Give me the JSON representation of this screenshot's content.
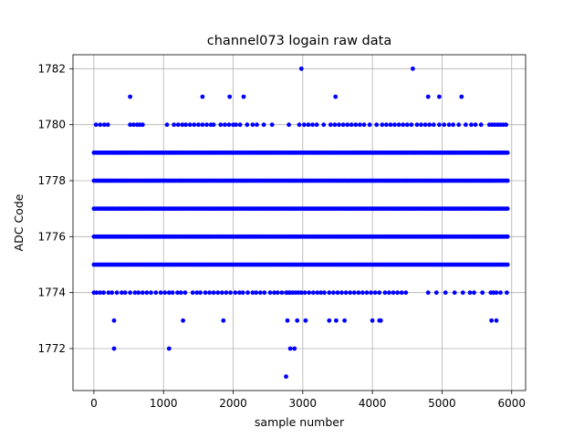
{
  "chart_data": {
    "type": "scatter",
    "title": "channel073 logain raw data",
    "xlabel": "sample number",
    "ylabel": "ADC Code",
    "xlim": [
      -300,
      6200
    ],
    "ylim": [
      1770.5,
      1782.5
    ],
    "xticks": [
      0,
      1000,
      2000,
      3000,
      4000,
      5000,
      6000
    ],
    "yticks": [
      1772,
      1774,
      1776,
      1778,
      1780,
      1782
    ],
    "grid": true,
    "marker_color": "#0000ff",
    "series": [
      {
        "dense_levels": [
          1775,
          1776,
          1777,
          1778,
          1779
        ],
        "sparse_levels": [
          {
            "y": 1774,
            "x": [
              0,
              40,
              90,
              140,
              210,
              260,
              330,
              400,
              450,
              520,
              590,
              640,
              700,
              760,
              820,
              890,
              960,
              1020,
              1080,
              1130,
              1200,
              1250,
              1310,
              1420,
              1480,
              1530,
              1600,
              1660,
              1720,
              1780,
              1840,
              1900,
              1960,
              2030,
              2090,
              2140,
              2210,
              2280,
              2330,
              2390,
              2450,
              2530,
              2590,
              2640,
              2700,
              2760,
              2790,
              2820,
              2860,
              2900,
              2940,
              2980,
              3030,
              3090,
              3150,
              3210,
              3260,
              3310,
              3380,
              3440,
              3500,
              3560,
              3620,
              3680,
              3740,
              3800,
              3860,
              3920,
              3980,
              4040,
              4100,
              4180,
              4240,
              4300,
              4360,
              4420,
              4480,
              4800,
              4920,
              5050,
              5180,
              5300,
              5400,
              5460,
              5580,
              5700,
              5740,
              5780,
              5840,
              5930
            ]
          },
          {
            "y": 1780,
            "x": [
              30,
              90,
              150,
              200,
              520,
              570,
              620,
              660,
              700,
              1050,
              1150,
              1210,
              1270,
              1320,
              1380,
              1440,
              1500,
              1560,
              1620,
              1680,
              1720,
              1820,
              1880,
              1940,
              2000,
              2040,
              2100,
              2200,
              2280,
              2340,
              2440,
              2560,
              2800,
              2950,
              3020,
              3080,
              3140,
              3200,
              3300,
              3400,
              3460,
              3520,
              3580,
              3640,
              3700,
              3760,
              3820,
              3880,
              3960,
              4060,
              4140,
              4200,
              4260,
              4320,
              4380,
              4440,
              4500,
              4560,
              4640,
              4700,
              4760,
              4820,
              4880,
              4960,
              5030,
              5100,
              5160,
              5240,
              5340,
              5420,
              5480,
              5560,
              5680,
              5720,
              5760,
              5800,
              5840,
              5880,
              5920
            ]
          },
          {
            "y": 1781,
            "x": [
              520,
              1560,
              1950,
              2150,
              3470,
              4800,
              4960,
              5280
            ]
          },
          {
            "y": 1782,
            "x": [
              2980,
              4580
            ]
          },
          {
            "y": 1773,
            "x": [
              290,
              1280,
              1860,
              2780,
              2920,
              3040,
              3380,
              3480,
              3600,
              4000,
              4100,
              4120,
              5710,
              5780
            ]
          },
          {
            "y": 1772,
            "x": [
              290,
              1080,
              2820,
              2880
            ]
          },
          {
            "y": 1771,
            "x": [
              2760
            ]
          }
        ]
      }
    ]
  }
}
